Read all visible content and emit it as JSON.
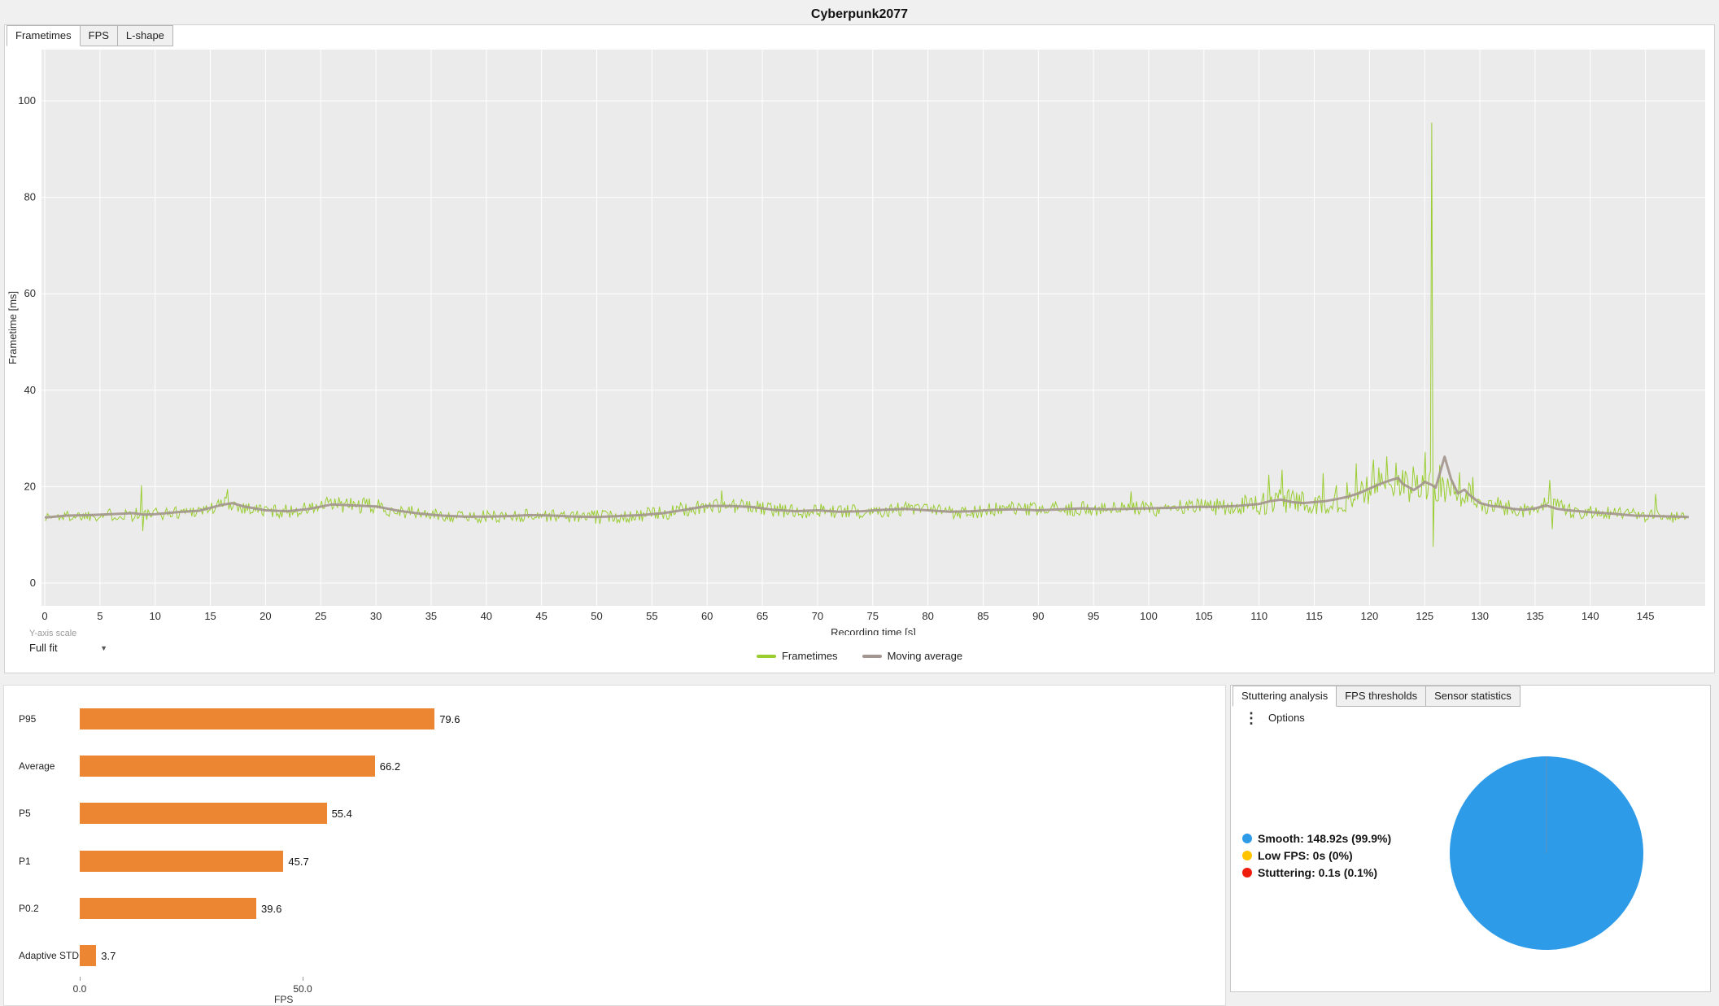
{
  "title": "Cyberpunk2077",
  "top_tabs": [
    {
      "label": "Frametimes",
      "active": true
    },
    {
      "label": "FPS",
      "active": false
    },
    {
      "label": "L-shape",
      "active": false
    }
  ],
  "y_axis_scale": {
    "label": "Y-axis scale",
    "value": "Full fit"
  },
  "chart_legend": [
    {
      "label": "Frametimes",
      "color": "#9ACD32"
    },
    {
      "label": "Moving average",
      "color": "#A3968E"
    }
  ],
  "right_tabs": [
    {
      "label": "Stuttering analysis",
      "active": true
    },
    {
      "label": "FPS thresholds",
      "active": false
    },
    {
      "label": "Sensor statistics",
      "active": false
    }
  ],
  "options_label": "Options",
  "stutter_legend": [
    {
      "label": "Smooth:",
      "value": "148.92s (99.9%)",
      "color": "#2E9BE8"
    },
    {
      "label": "Low FPS:",
      "value": "0s (0%)",
      "color": "#FFC400"
    },
    {
      "label": "Stuttering:",
      "value": "0.1s (0.1%)",
      "color": "#F01D0D"
    }
  ],
  "chart_data": [
    {
      "id": "frametimes-chart",
      "type": "line",
      "title": "Cyberpunk2077",
      "xlabel": "Recording time [s]",
      "ylabel": "Frametime [ms]",
      "x_ticks": [
        0,
        5,
        10,
        15,
        20,
        25,
        30,
        35,
        40,
        45,
        50,
        55,
        60,
        65,
        70,
        75,
        80,
        85,
        90,
        95,
        100,
        105,
        110,
        115,
        120,
        125,
        130,
        135,
        140,
        145
      ],
      "y_ticks": [
        0,
        20,
        40,
        60,
        80,
        100
      ],
      "xlim": [
        -0.3,
        150.4
      ],
      "ylim": [
        -5,
        110
      ],
      "grid": true,
      "legend_position": "bottom",
      "duration_s": 148.92,
      "sample_step_s": 0.12,
      "noise_seed": 1337,
      "series": [
        {
          "name": "Frametimes",
          "color": "#9ACD32",
          "envelope": [
            [
              0,
              13.7,
              1.1
            ],
            [
              3,
              14.0,
              1.2
            ],
            [
              6,
              14.2,
              1.3
            ],
            [
              8,
              14.5,
              1.9
            ],
            [
              9,
              14.1,
              1.4
            ],
            [
              11,
              14.5,
              1.3
            ],
            [
              13,
              14.9,
              1.4
            ],
            [
              15,
              15.4,
              1.5
            ],
            [
              16.5,
              16.7,
              1.6
            ],
            [
              18,
              15.7,
              1.4
            ],
            [
              20,
              15.0,
              1.5
            ],
            [
              22,
              14.9,
              1.4
            ],
            [
              24,
              15.4,
              1.6
            ],
            [
              26,
              16.3,
              1.8
            ],
            [
              28,
              16.1,
              1.7
            ],
            [
              30,
              15.9,
              1.7
            ],
            [
              32,
              15.0,
              1.5
            ],
            [
              34,
              14.4,
              1.3
            ],
            [
              36,
              14.0,
              1.3
            ],
            [
              38,
              13.8,
              1.3
            ],
            [
              40,
              13.8,
              1.3
            ],
            [
              42,
              13.9,
              1.4
            ],
            [
              44,
              14.1,
              1.4
            ],
            [
              46,
              14.0,
              1.3
            ],
            [
              48,
              13.8,
              1.3
            ],
            [
              50,
              13.7,
              1.5
            ],
            [
              52,
              13.9,
              1.4
            ],
            [
              54,
              14.1,
              1.5
            ],
            [
              56,
              14.5,
              1.5
            ],
            [
              58,
              15.2,
              1.6
            ],
            [
              60,
              16.0,
              1.7
            ],
            [
              62,
              16.0,
              1.6
            ],
            [
              64,
              15.8,
              1.6
            ],
            [
              66,
              15.2,
              1.5
            ],
            [
              68,
              14.9,
              1.5
            ],
            [
              70,
              15.1,
              1.5
            ],
            [
              72,
              14.8,
              1.4
            ],
            [
              74,
              14.9,
              1.5
            ],
            [
              76,
              15.2,
              1.5
            ],
            [
              78,
              15.4,
              1.6
            ],
            [
              80,
              15.1,
              1.5
            ],
            [
              82,
              14.8,
              1.5
            ],
            [
              84,
              14.9,
              1.5
            ],
            [
              86,
              15.2,
              1.6
            ],
            [
              88,
              15.3,
              1.6
            ],
            [
              90,
              15.1,
              1.5
            ],
            [
              92,
              15.3,
              1.6
            ],
            [
              94,
              15.5,
              1.6
            ],
            [
              96,
              15.3,
              1.5
            ],
            [
              98,
              15.4,
              1.7
            ],
            [
              100,
              15.5,
              1.7
            ],
            [
              102,
              15.6,
              1.7
            ],
            [
              104,
              15.8,
              1.8
            ],
            [
              106,
              15.8,
              1.8
            ],
            [
              108,
              16.0,
              2.0
            ],
            [
              110,
              16.4,
              2.4
            ],
            [
              112,
              17.2,
              2.9
            ],
            [
              114,
              16.6,
              2.5
            ],
            [
              116,
              17.0,
              2.7
            ],
            [
              118,
              17.9,
              3.1
            ],
            [
              120,
              19.6,
              3.6
            ],
            [
              121,
              20.6,
              3.6
            ],
            [
              122,
              21.3,
              3.4
            ],
            [
              123,
              20.5,
              3.2
            ],
            [
              124,
              19.3,
              3.0
            ],
            [
              125,
              20.9,
              3.6
            ],
            [
              126,
              20.0,
              3.4
            ],
            [
              127,
              18.8,
              3.0
            ],
            [
              128,
              18.2,
              2.7
            ],
            [
              129,
              18.3,
              2.5
            ],
            [
              130,
              16.5,
              2.1
            ],
            [
              132,
              15.8,
              1.9
            ],
            [
              134,
              15.2,
              1.7
            ],
            [
              136,
              16.1,
              2.1
            ],
            [
              138,
              15.1,
              1.7
            ],
            [
              140,
              14.7,
              1.5
            ],
            [
              142,
              14.4,
              1.4
            ],
            [
              144,
              14.1,
              1.4
            ],
            [
              146,
              13.9,
              1.3
            ],
            [
              148.92,
              13.6,
              1.2
            ]
          ],
          "spikes": [
            [
              8.7,
              20.3
            ],
            [
              8.9,
              10.8
            ],
            [
              16.6,
              19.5
            ],
            [
              61.3,
              19.2
            ],
            [
              98.4,
              19.0
            ],
            [
              110.9,
              22.5
            ],
            [
              112.1,
              23.5
            ],
            [
              115.8,
              22.8
            ],
            [
              118.8,
              24.8
            ],
            [
              120.3,
              25.6
            ],
            [
              121.5,
              26.3
            ],
            [
              122.4,
              25.0
            ],
            [
              123.9,
              24.2
            ],
            [
              125.0,
              27.2
            ],
            [
              125.6,
              95.5
            ],
            [
              125.8,
              7.5
            ],
            [
              126.4,
              24.5
            ],
            [
              128.2,
              23.0
            ],
            [
              129.3,
              22.0
            ],
            [
              136.3,
              21.4
            ],
            [
              136.5,
              11.2
            ],
            [
              145.9,
              18.5
            ]
          ]
        },
        {
          "name": "Moving average",
          "color": "#A3968E",
          "points": [
            [
              0,
              13.6
            ],
            [
              2,
              14.0
            ],
            [
              4,
              14.1
            ],
            [
              6,
              14.3
            ],
            [
              8,
              14.5
            ],
            [
              9,
              14.2
            ],
            [
              10,
              14.3
            ],
            [
              12,
              14.7
            ],
            [
              14,
              15.0
            ],
            [
              16,
              16.2
            ],
            [
              17,
              16.6
            ],
            [
              18,
              15.9
            ],
            [
              20,
              15.1
            ],
            [
              22,
              14.9
            ],
            [
              24,
              15.4
            ],
            [
              26,
              16.3
            ],
            [
              28,
              16.1
            ],
            [
              30,
              15.9
            ],
            [
              32,
              15.0
            ],
            [
              34,
              14.4
            ],
            [
              36,
              14.0
            ],
            [
              38,
              13.8
            ],
            [
              40,
              13.8
            ],
            [
              42,
              13.9
            ],
            [
              44,
              14.1
            ],
            [
              46,
              14.0
            ],
            [
              48,
              13.8
            ],
            [
              50,
              13.7
            ],
            [
              52,
              13.9
            ],
            [
              54,
              14.1
            ],
            [
              56,
              14.5
            ],
            [
              58,
              15.2
            ],
            [
              60,
              16.0
            ],
            [
              62,
              16.0
            ],
            [
              64,
              15.8
            ],
            [
              66,
              15.2
            ],
            [
              68,
              14.9
            ],
            [
              70,
              15.1
            ],
            [
              72,
              14.8
            ],
            [
              74,
              14.9
            ],
            [
              76,
              15.2
            ],
            [
              78,
              15.4
            ],
            [
              80,
              15.1
            ],
            [
              82,
              14.8
            ],
            [
              84,
              14.9
            ],
            [
              86,
              15.2
            ],
            [
              88,
              15.3
            ],
            [
              90,
              15.1
            ],
            [
              92,
              15.3
            ],
            [
              94,
              15.5
            ],
            [
              96,
              15.3
            ],
            [
              98,
              15.4
            ],
            [
              100,
              15.5
            ],
            [
              102,
              15.6
            ],
            [
              104,
              15.8
            ],
            [
              106,
              15.8
            ],
            [
              108,
              16.0
            ],
            [
              110,
              16.4
            ],
            [
              111,
              17.0
            ],
            [
              112,
              17.3
            ],
            [
              113,
              16.8
            ],
            [
              114,
              16.6
            ],
            [
              115,
              16.8
            ],
            [
              116,
              17.0
            ],
            [
              117,
              17.4
            ],
            [
              118,
              17.9
            ],
            [
              119,
              18.6
            ],
            [
              120,
              19.6
            ],
            [
              121,
              20.6
            ],
            [
              122,
              21.4
            ],
            [
              122.6,
              21.8
            ],
            [
              123,
              20.6
            ],
            [
              124,
              19.3
            ],
            [
              124.6,
              20.2
            ],
            [
              125,
              21.0
            ],
            [
              125.6,
              20.4
            ],
            [
              126,
              19.8
            ],
            [
              126.8,
              26.2
            ],
            [
              127.4,
              21.5
            ],
            [
              128,
              18.6
            ],
            [
              128.6,
              19.4
            ],
            [
              129,
              18.4
            ],
            [
              130,
              16.6
            ],
            [
              131,
              16.0
            ],
            [
              132,
              15.8
            ],
            [
              133,
              15.4
            ],
            [
              134,
              15.2
            ],
            [
              135,
              15.5
            ],
            [
              136,
              16.1
            ],
            [
              137,
              15.4
            ],
            [
              138,
              15.1
            ],
            [
              139,
              14.9
            ],
            [
              140,
              14.7
            ],
            [
              142,
              14.4
            ],
            [
              144,
              14.0
            ],
            [
              146,
              13.9
            ],
            [
              148,
              13.8
            ],
            [
              148.92,
              13.7
            ]
          ]
        }
      ]
    },
    {
      "id": "fps-percentiles",
      "type": "bar",
      "orientation": "horizontal",
      "categories": [
        "P95",
        "Average",
        "P5",
        "P1",
        "P0.2",
        "Adaptive STDEV"
      ],
      "values": [
        79.6,
        66.2,
        55.4,
        45.7,
        39.6,
        3.7
      ],
      "value_labels": [
        "79.6",
        "66.2",
        "55.4",
        "45.7",
        "39.6",
        "3.7"
      ],
      "xlabel": "FPS",
      "x_ticks": [
        0,
        50
      ],
      "x_tick_labels": [
        "0.0",
        "50.0"
      ],
      "xlim": [
        0,
        100
      ],
      "bar_color": "#ED8633"
    },
    {
      "id": "stuttering-pie",
      "type": "pie",
      "slices": [
        {
          "label": "Smooth",
          "seconds": 148.92,
          "percent": 99.9,
          "color": "#2E9BE8"
        },
        {
          "label": "Low FPS",
          "seconds": 0,
          "percent": 0,
          "color": "#FFC400"
        },
        {
          "label": "Stuttering",
          "seconds": 0.1,
          "percent": 0.1,
          "color": "#F01D0D"
        }
      ]
    }
  ]
}
